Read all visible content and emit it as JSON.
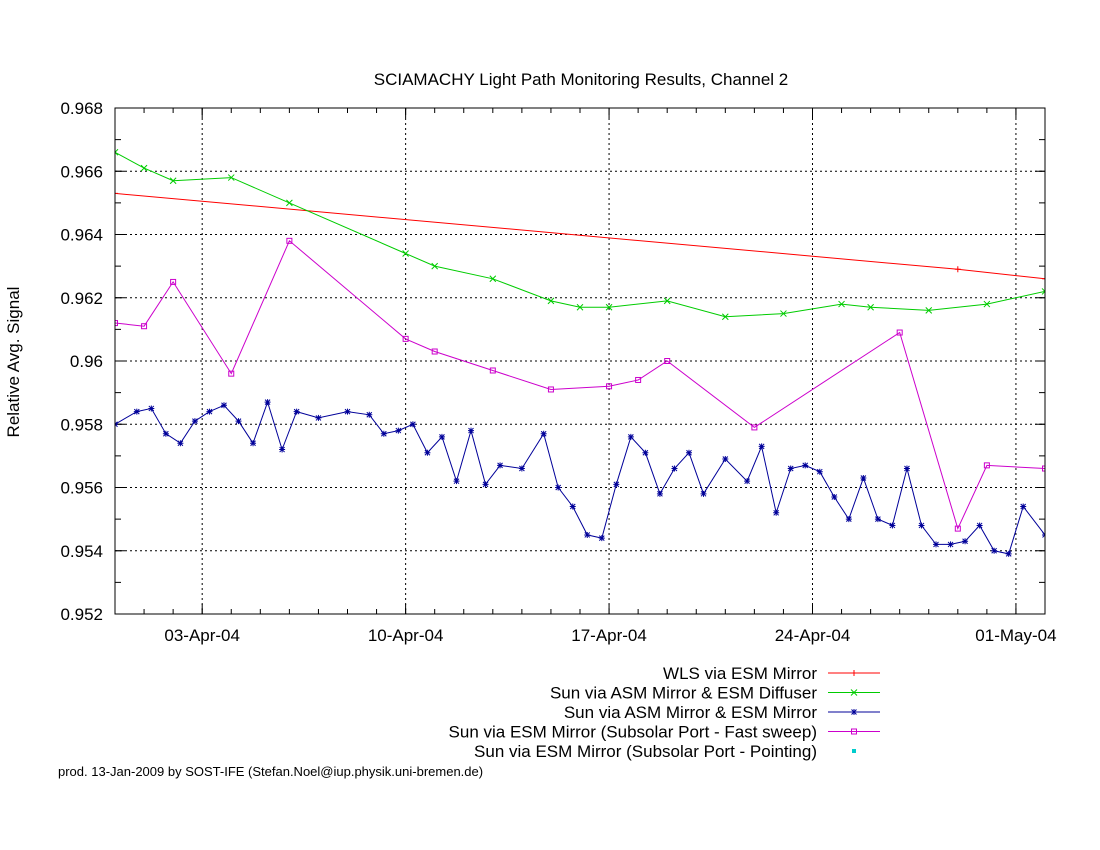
{
  "chart_data": {
    "type": "line",
    "title": "SCIAMACHY Light Path Monitoring Results, Channel 2",
    "xlabel": "",
    "ylabel": "Relative Avg. Signal",
    "xlim": [
      "2004-03-31",
      "2004-05-02"
    ],
    "ylim": [
      0.952,
      0.968
    ],
    "grid": true,
    "legend_position": "bottom-right",
    "x_ticks": [
      {
        "label": "03-Apr-04",
        "date": "2004-04-03"
      },
      {
        "label": "10-Apr-04",
        "date": "2004-04-10"
      },
      {
        "label": "17-Apr-04",
        "date": "2004-04-17"
      },
      {
        "label": "24-Apr-04",
        "date": "2004-04-24"
      },
      {
        "label": "01-May-04",
        "date": "2004-05-01"
      }
    ],
    "y_ticks": [
      "0.952",
      "0.954",
      "0.956",
      "0.958",
      "0.96",
      "0.962",
      "0.964",
      "0.966",
      "0.968"
    ],
    "series": [
      {
        "name": "WLS via ESM Mirror",
        "color": "#ff0000",
        "marker": "plus",
        "x": [
          "2004-03-31",
          "2004-04-29",
          "2004-05-02"
        ],
        "y": [
          0.9653,
          0.9629,
          0.9626
        ]
      },
      {
        "name": "Sun via ASM Mirror & ESM Diffuser",
        "color": "#00cc00",
        "marker": "cross",
        "x": [
          "2004-03-31",
          "2004-04-01",
          "2004-04-02",
          "2004-04-04",
          "2004-04-06",
          "2004-04-10",
          "2004-04-11",
          "2004-04-13",
          "2004-04-15",
          "2004-04-16",
          "2004-04-17",
          "2004-04-19",
          "2004-04-21",
          "2004-04-23",
          "2004-04-25",
          "2004-04-26",
          "2004-04-28",
          "2004-04-30",
          "2004-05-02"
        ],
        "y": [
          0.9666,
          0.9661,
          0.9657,
          0.9658,
          0.965,
          0.9634,
          0.963,
          0.9626,
          0.9619,
          0.9617,
          0.9617,
          0.9619,
          0.9614,
          0.9615,
          0.9618,
          0.9617,
          0.9616,
          0.9618,
          0.9622
        ]
      },
      {
        "name": "Sun via ASM Mirror & ESM Mirror",
        "color": "#000099",
        "marker": "star",
        "x": [
          "2004-03-31",
          "2004-04-01",
          "2004-04-01",
          "2004-04-02",
          "2004-04-02",
          "2004-04-03",
          "2004-04-03",
          "2004-04-04",
          "2004-04-04",
          "2004-04-05",
          "2004-04-05",
          "2004-04-06",
          "2004-04-06",
          "2004-04-07",
          "2004-04-08",
          "2004-04-09",
          "2004-04-09",
          "2004-04-10",
          "2004-04-10",
          "2004-04-11",
          "2004-04-11",
          "2004-04-12",
          "2004-04-12",
          "2004-04-13",
          "2004-04-13",
          "2004-04-14",
          "2004-04-15",
          "2004-04-15",
          "2004-04-16",
          "2004-04-16",
          "2004-04-17",
          "2004-04-17",
          "2004-04-18",
          "2004-04-18",
          "2004-04-19",
          "2004-04-19",
          "2004-04-20",
          "2004-04-20",
          "2004-04-21",
          "2004-04-22",
          "2004-04-22",
          "2004-04-23",
          "2004-04-23",
          "2004-04-24",
          "2004-04-24",
          "2004-04-25",
          "2004-04-25",
          "2004-04-26",
          "2004-04-26",
          "2004-04-27",
          "2004-04-27",
          "2004-04-28",
          "2004-04-28",
          "2004-04-29",
          "2004-04-29",
          "2004-04-30",
          "2004-04-30",
          "2004-05-01",
          "2004-05-01",
          "2004-05-02"
        ],
        "y": [
          0.958,
          0.9584,
          0.9585,
          0.9577,
          0.9574,
          0.9581,
          0.9584,
          0.9586,
          0.9581,
          0.9574,
          0.9587,
          0.9572,
          0.9584,
          0.9582,
          0.9584,
          0.9583,
          0.9577,
          0.9578,
          0.958,
          0.9571,
          0.9576,
          0.9562,
          0.9578,
          0.9561,
          0.9567,
          0.9566,
          0.9577,
          0.956,
          0.9554,
          0.9545,
          0.9544,
          0.9561,
          0.9576,
          0.9571,
          0.9558,
          0.9566,
          0.9571,
          0.9558,
          0.9569,
          0.9562,
          0.9573,
          0.9552,
          0.9566,
          0.9567,
          0.9565,
          0.9557,
          0.955,
          0.9563,
          0.955,
          0.9548,
          0.9566,
          0.9548,
          0.9542,
          0.9542,
          0.9543,
          0.9548,
          0.954,
          0.9539,
          0.9554,
          0.9545
        ]
      },
      {
        "name": "Sun via ESM Mirror (Subsolar Port - Fast sweep)",
        "color": "#cc00cc",
        "marker": "square",
        "x": [
          "2004-03-31",
          "2004-04-01",
          "2004-04-02",
          "2004-04-04",
          "2004-04-06",
          "2004-04-10",
          "2004-04-11",
          "2004-04-13",
          "2004-04-15",
          "2004-04-17",
          "2004-04-18",
          "2004-04-19",
          "2004-04-22",
          "2004-04-27",
          "2004-04-29",
          "2004-04-30",
          "2004-05-02"
        ],
        "y": [
          0.9612,
          0.9611,
          0.9625,
          0.9596,
          0.9638,
          0.9607,
          0.9603,
          0.9597,
          0.9591,
          0.9592,
          0.9594,
          0.96,
          0.9579,
          0.9609,
          0.9547,
          0.9567,
          0.9566
        ]
      },
      {
        "name": "Sun via ESM Mirror (Subsolar Port - Pointing)",
        "color": "#00cccc",
        "marker": "dot",
        "x": [],
        "y": []
      }
    ],
    "annotations": []
  },
  "credit": "prod. 13-Jan-2009 by SOST-IFE (Stefan.Noel@iup.physik.uni-bremen.de)"
}
